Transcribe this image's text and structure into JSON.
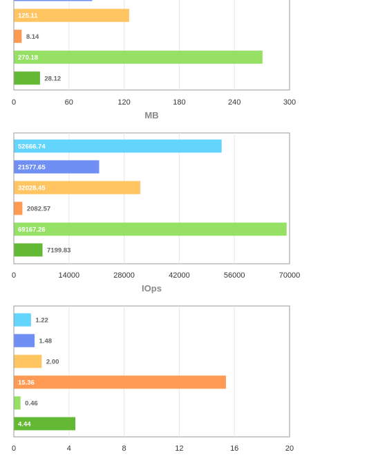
{
  "chart_data": [
    {
      "type": "bar",
      "orientation": "horizontal",
      "xlabel": "MB",
      "xlim": [
        0,
        300
      ],
      "xticks": [
        "0",
        "60",
        "120",
        "180",
        "240",
        "300"
      ],
      "grid": true,
      "series": [
        {
          "label": "",
          "value": 85,
          "color": "#6f8ff5",
          "cut_off_top": true
        },
        {
          "label": "125.11",
          "value": 125.11,
          "color": "#ffc563"
        },
        {
          "label": "8.14",
          "value": 8.14,
          "color": "#ff9a52"
        },
        {
          "label": "270.18",
          "value": 270.18,
          "color": "#96e065"
        },
        {
          "label": "28.12",
          "value": 28.12,
          "color": "#64b934"
        }
      ]
    },
    {
      "type": "bar",
      "orientation": "horizontal",
      "xlabel": "IOps",
      "xlim": [
        0,
        70000
      ],
      "xticks": [
        "0",
        "14000",
        "28000",
        "42000",
        "56000",
        "70000"
      ],
      "grid": true,
      "series": [
        {
          "label": "52666.74",
          "value": 52666.74,
          "color": "#63d4fc"
        },
        {
          "label": "21577.65",
          "value": 21577.65,
          "color": "#6f8ff5"
        },
        {
          "label": "32028.45",
          "value": 32028.45,
          "color": "#ffc563"
        },
        {
          "label": "2082.57",
          "value": 2082.57,
          "color": "#ff9a52"
        },
        {
          "label": "69167.26",
          "value": 69167.26,
          "color": "#96e065"
        },
        {
          "label": "7199.83",
          "value": 7199.83,
          "color": "#64b934"
        }
      ]
    },
    {
      "type": "bar",
      "orientation": "horizontal",
      "xlabel": "",
      "xlim": [
        0,
        20
      ],
      "xticks": [
        "0",
        "4",
        "8",
        "12",
        "16",
        "20"
      ],
      "grid": true,
      "series": [
        {
          "label": "1.22",
          "value": 1.22,
          "color": "#63d4fc"
        },
        {
          "label": "1.48",
          "value": 1.48,
          "color": "#6f8ff5"
        },
        {
          "label": "2.00",
          "value": 2.0,
          "color": "#ffc563"
        },
        {
          "label": "15.36",
          "value": 15.36,
          "color": "#ff9a52"
        },
        {
          "label": "0.46",
          "value": 0.46,
          "color": "#96e065"
        },
        {
          "label": "4.44",
          "value": 4.44,
          "color": "#64b934"
        }
      ]
    }
  ]
}
